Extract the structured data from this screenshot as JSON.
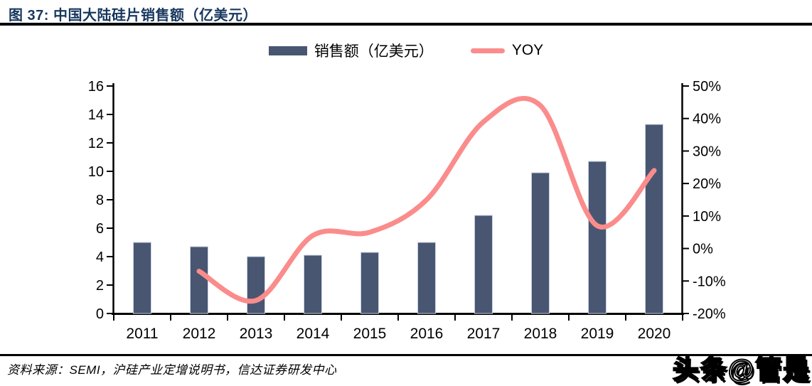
{
  "figure": {
    "title": "图 37:  中国大陆硅片销售额（亿美元）",
    "source": "资料来源：SEMI，沪硅产业定增说明书，信达证券研发中心",
    "watermark": "头条@管是"
  },
  "legend": [
    {
      "label": "销售额（亿美元）",
      "type": "bar",
      "color": "#495672"
    },
    {
      "label": "YOY",
      "type": "line",
      "color": "#FB8C8C"
    }
  ],
  "chart_data": {
    "type": "bar+line",
    "title": "中国大陆硅片销售额（亿美元）",
    "categories": [
      "2011",
      "2012",
      "2013",
      "2014",
      "2015",
      "2016",
      "2017",
      "2018",
      "2019",
      "2020"
    ],
    "series": [
      {
        "name": "销售额（亿美元）",
        "type": "bar",
        "axis": "left",
        "values": [
          5.0,
          4.7,
          4.0,
          4.1,
          4.3,
          5.0,
          6.9,
          9.9,
          10.7,
          13.3
        ]
      },
      {
        "name": "YOY",
        "type": "line",
        "axis": "right",
        "unit": "%",
        "values": [
          null,
          -7,
          -16,
          4,
          5,
          15,
          39,
          44,
          7,
          24
        ]
      }
    ],
    "left_axis": {
      "min": 0,
      "max": 16,
      "step": 2,
      "ticks": [
        "0",
        "2",
        "4",
        "6",
        "8",
        "10",
        "12",
        "14",
        "16"
      ]
    },
    "right_axis": {
      "min": -20,
      "max": 50,
      "step": 10,
      "ticks": [
        "-20%",
        "-10%",
        "0%",
        "10%",
        "20%",
        "30%",
        "40%",
        "50%"
      ]
    },
    "grid": false,
    "legend_position": "top"
  },
  "colors": {
    "bar": "#495672",
    "bar_border": "#C9D2E2",
    "line": "#FB8C8C",
    "title": "#17375E",
    "axis": "#000000"
  }
}
